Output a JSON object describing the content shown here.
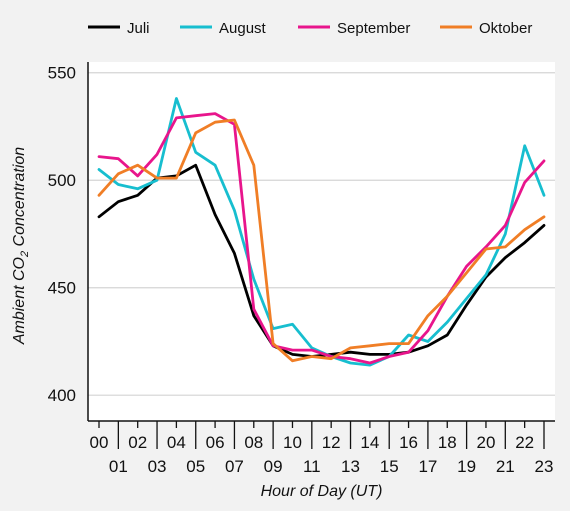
{
  "chart_data": {
    "type": "line",
    "title": "",
    "xlabel": "Hour of Day (UT)",
    "ylabel_main": "Ambient CO",
    "ylabel_sub": "2",
    "ylabel_rest": " Concentration",
    "x": [
      "00",
      "01",
      "02",
      "03",
      "04",
      "05",
      "06",
      "07",
      "08",
      "09",
      "10",
      "11",
      "12",
      "13",
      "14",
      "15",
      "16",
      "17",
      "18",
      "19",
      "20",
      "21",
      "22",
      "23"
    ],
    "ylim": [
      388,
      555
    ],
    "yticks": [
      400,
      450,
      500,
      550
    ],
    "legend_position": "top",
    "series": [
      {
        "name": "Juli",
        "color": "#000000",
        "values": [
          483,
          490,
          493,
          501,
          502,
          507,
          484,
          466,
          437,
          423,
          419,
          418,
          419,
          420,
          419,
          419,
          420,
          423,
          428,
          442,
          455,
          464,
          471,
          479
        ]
      },
      {
        "name": "August",
        "color": "#17becf",
        "values": [
          505,
          498,
          496,
          500,
          538,
          513,
          507,
          486,
          454,
          431,
          433,
          422,
          418,
          415,
          414,
          418,
          428,
          425,
          434,
          445,
          456,
          475,
          516,
          493
        ]
      },
      {
        "name": "September",
        "color": "#e8158c",
        "values": [
          511,
          510,
          502,
          512,
          529,
          530,
          531,
          526,
          440,
          423,
          421,
          421,
          418,
          417,
          415,
          418,
          420,
          430,
          446,
          460,
          469,
          479,
          499,
          509
        ]
      },
      {
        "name": "Oktober",
        "color": "#f07e26",
        "values": [
          493,
          503,
          507,
          501,
          501,
          522,
          527,
          528,
          507,
          424,
          416,
          418,
          417,
          422,
          423,
          424,
          424,
          437,
          446,
          457,
          468,
          469,
          477,
          483
        ]
      }
    ]
  }
}
